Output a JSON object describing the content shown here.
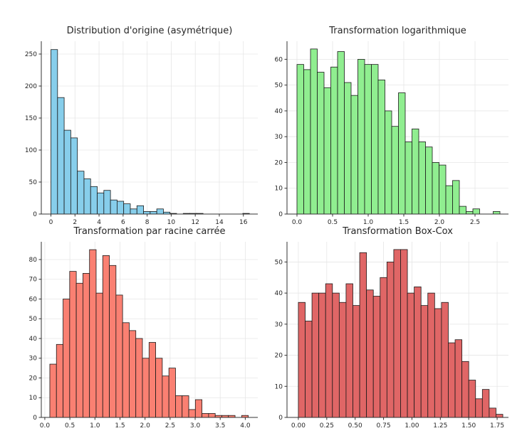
{
  "chart_data": [
    {
      "type": "bar",
      "title": "Distribution d'origine (asymétrique)",
      "xlabel": "",
      "ylabel": "",
      "color": "#87CEEB",
      "grid": true,
      "xlim": [
        -0.8,
        17.2
      ],
      "ylim": [
        0,
        270
      ],
      "xticks": [
        0,
        2,
        4,
        6,
        8,
        10,
        12,
        14,
        16
      ],
      "yticks": [
        0,
        50,
        100,
        150,
        200,
        250
      ],
      "tick_decimals": 0,
      "bin_start": 0.0,
      "bin_width": 0.55,
      "values": [
        257,
        182,
        131,
        119,
        67,
        55,
        43,
        33,
        37,
        22,
        20,
        16,
        8,
        13,
        4,
        4,
        8,
        3,
        1,
        0,
        1,
        1,
        1,
        0,
        0,
        0,
        0,
        0,
        0,
        1
      ]
    },
    {
      "type": "bar",
      "title": "Transformation logarithmique",
      "xlabel": "",
      "ylabel": "",
      "color": "#90EE90",
      "grid": true,
      "xlim": [
        -0.14,
        2.97
      ],
      "ylim": [
        0,
        67
      ],
      "xticks": [
        0.0,
        0.5,
        1.0,
        1.5,
        2.0,
        2.5
      ],
      "yticks": [
        0,
        10,
        20,
        30,
        40,
        50,
        60
      ],
      "tick_decimals": 1,
      "bin_start": 0.0,
      "bin_width": 0.095,
      "values": [
        58,
        56,
        64,
        55,
        49,
        57,
        63,
        51,
        46,
        60,
        58,
        58,
        52,
        40,
        34,
        47,
        28,
        33,
        28,
        26,
        20,
        19,
        11,
        13,
        3,
        1,
        2,
        0,
        0,
        1
      ]
    },
    {
      "type": "bar",
      "title": "Transformation par racine carrée",
      "xlabel": "",
      "ylabel": "",
      "color": "#FA8072",
      "grid": true,
      "xlim": [
        -0.07,
        4.25
      ],
      "ylim": [
        0,
        89
      ],
      "xticks": [
        0.0,
        0.5,
        1.0,
        1.5,
        2.0,
        2.5,
        3.0,
        3.5,
        4.0
      ],
      "yticks": [
        0,
        10,
        20,
        30,
        40,
        50,
        60,
        70,
        80
      ],
      "tick_decimals": 1,
      "bin_start": 0.1,
      "bin_width": 0.132,
      "values": [
        27,
        37,
        60,
        74,
        68,
        73,
        85,
        63,
        82,
        77,
        62,
        48,
        44,
        40,
        30,
        38,
        30,
        21,
        25,
        11,
        11,
        4,
        9,
        2,
        2,
        1,
        1,
        1,
        0,
        1
      ]
    },
    {
      "type": "bar",
      "title": "Transformation Box-Cox",
      "xlabel": "",
      "ylabel": "",
      "color": "#E06666",
      "grid": true,
      "xlim": [
        -0.1,
        1.85
      ],
      "ylim": [
        0,
        56.5
      ],
      "xticks": [
        0.0,
        0.25,
        0.5,
        0.75,
        1.0,
        1.25,
        1.5,
        1.75
      ],
      "yticks": [
        0,
        10,
        20,
        30,
        40,
        50
      ],
      "tick_decimals": 2,
      "bin_start": 0.0,
      "bin_width": 0.06,
      "values": [
        37,
        31,
        40,
        40,
        43,
        40,
        37,
        43,
        36,
        53,
        41,
        39,
        45,
        50,
        54,
        54,
        40,
        42,
        36,
        40,
        35,
        37,
        24,
        25,
        18,
        12,
        6,
        9,
        3,
        1
      ]
    }
  ]
}
